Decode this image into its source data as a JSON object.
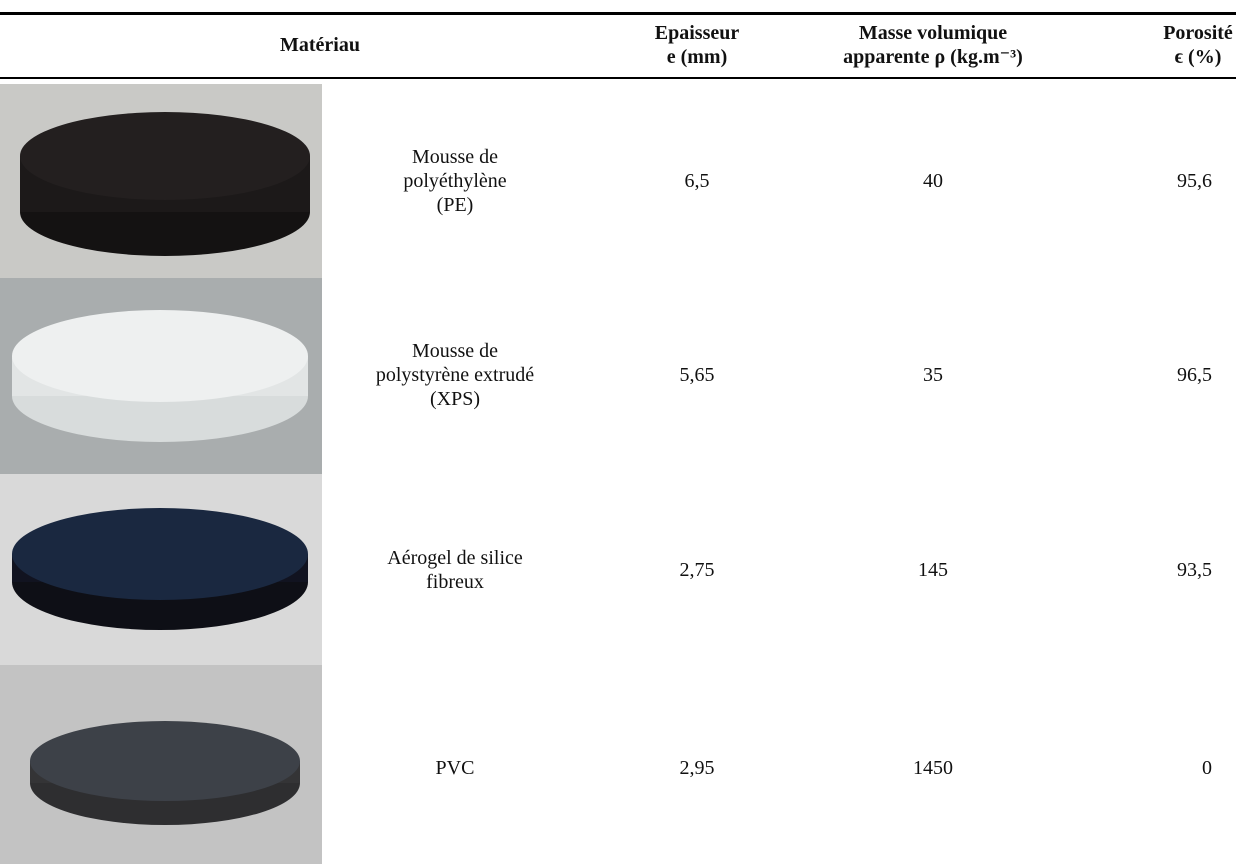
{
  "table": {
    "header": {
      "material": "Matériau",
      "thickness": [
        "Epaisseur",
        "e (mm)"
      ],
      "density": [
        "Masse volumique",
        "apparente ρ (kg.m⁻³)"
      ],
      "porosity": [
        "Porosité",
        "ϵ (%)"
      ]
    },
    "rows": [
      {
        "material": [
          "Mousse de",
          "polyéthylène",
          "(PE)"
        ],
        "thickness": "6,5",
        "density": "40",
        "porosity": "95,6"
      },
      {
        "material": [
          "Mousse de",
          "polystyrène extrudé",
          "(XPS)"
        ],
        "thickness": "5,65",
        "density": "35",
        "porosity": "96,5"
      },
      {
        "material": [
          "Aérogel de silice",
          "fibreux"
        ],
        "thickness": "2,75",
        "density": "145",
        "porosity": "93,5"
      },
      {
        "material": [
          "PVC"
        ],
        "thickness": "2,95",
        "density": "1450",
        "porosity": "0"
      }
    ]
  }
}
